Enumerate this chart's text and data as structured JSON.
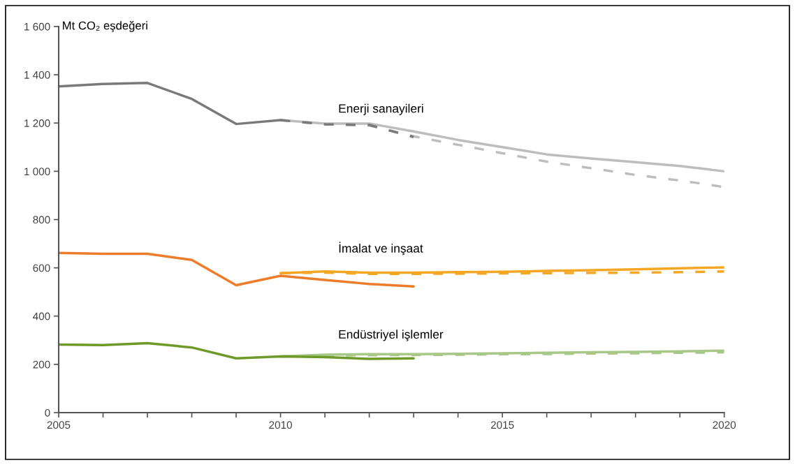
{
  "chart_data": {
    "type": "line",
    "ylabel": "Mt CO₂ eşdeğeri",
    "xlim": [
      2005,
      2020
    ],
    "ylim": [
      0,
      1600
    ],
    "xticks": [
      2005,
      {
        "value": 2006,
        "label": null
      },
      {
        "value": 2007,
        "label": null
      },
      {
        "value": 2008,
        "label": null
      },
      {
        "value": 2009,
        "label": null
      },
      2010,
      {
        "value": 2011,
        "label": null
      },
      {
        "value": 2012,
        "label": null
      },
      {
        "value": 2013,
        "label": null
      },
      {
        "value": 2014,
        "label": null
      },
      2015,
      {
        "value": 2016,
        "label": null
      },
      {
        "value": 2017,
        "label": null
      },
      {
        "value": 2018,
        "label": null
      },
      {
        "value": 2019,
        "label": null
      },
      2020
    ],
    "yticks": [
      0,
      200,
      400,
      600,
      800,
      {
        "value": 1000,
        "label": "1 000"
      },
      {
        "value": 1200,
        "label": "1 200"
      },
      {
        "value": 1400,
        "label": "1 400"
      },
      {
        "value": 1600,
        "label": "1 600"
      }
    ],
    "grid": false,
    "legend": false,
    "series": [
      {
        "color": "#bdbdbd",
        "line_style": "solid",
        "x": [
          2010,
          2011,
          2012,
          2013,
          2014,
          2015,
          2016,
          2017,
          2018,
          2019,
          2020
        ],
        "values": [
          1212,
          1198,
          1198,
          1165,
          1130,
          1100,
          1070,
          1053,
          1038,
          1022,
          1000
        ]
      },
      {
        "color": "#bdbdbd",
        "line_style": "dashed",
        "x": [
          2010,
          2011,
          2012,
          2013,
          2014,
          2015,
          2016,
          2017,
          2018,
          2019,
          2020
        ],
        "values": [
          1212,
          1195,
          1190,
          1145,
          1110,
          1075,
          1040,
          1013,
          985,
          962,
          935
        ]
      },
      {
        "color": "#7a7a7a",
        "line_style": "solid",
        "x": [
          2005,
          2006,
          2007,
          2008,
          2009,
          2010
        ],
        "values": [
          1352,
          1362,
          1366,
          1300,
          1196,
          1212
        ]
      },
      {
        "color": "#7a7a7a",
        "line_style": "dashed",
        "x": [
          2010,
          2011,
          2012,
          2013
        ],
        "values": [
          1212,
          1195,
          1192,
          1142
        ]
      },
      {
        "color": "#f5a623",
        "line_style": "solid",
        "x": [
          2010,
          2011,
          2012,
          2013,
          2014,
          2015,
          2016,
          2017,
          2018,
          2019,
          2020
        ],
        "values": [
          578,
          585,
          580,
          580,
          582,
          584,
          587,
          590,
          594,
          598,
          602
        ]
      },
      {
        "color": "#f5a623",
        "line_style": "dashed",
        "x": [
          2010,
          2011,
          2012,
          2013,
          2014,
          2015,
          2016,
          2017,
          2018,
          2019,
          2020
        ],
        "values": [
          578,
          580,
          575,
          575,
          576,
          577,
          578,
          579,
          580,
          582,
          585
        ]
      },
      {
        "color": "#ee7d2b",
        "line_style": "solid",
        "x": [
          2005,
          2006,
          2007,
          2008,
          2009,
          2010,
          2011,
          2012,
          2013
        ],
        "values": [
          662,
          658,
          658,
          633,
          528,
          567,
          550,
          533,
          523
        ]
      },
      {
        "color": "#a8c888",
        "line_style": "solid",
        "x": [
          2010,
          2011,
          2012,
          2013,
          2014,
          2015,
          2016,
          2017,
          2018,
          2019,
          2020
        ],
        "values": [
          233,
          240,
          242,
          242,
          244,
          246,
          248,
          250,
          252,
          254,
          257
        ]
      },
      {
        "color": "#a8c888",
        "line_style": "dashed",
        "x": [
          2010,
          2011,
          2012,
          2013,
          2014,
          2015,
          2016,
          2017,
          2018,
          2019,
          2020
        ],
        "values": [
          233,
          237,
          238,
          239,
          240,
          242,
          243,
          245,
          246,
          248,
          250
        ]
      },
      {
        "color": "#6f9a2a",
        "line_style": "solid",
        "x": [
          2005,
          2006,
          2007,
          2008,
          2009,
          2010,
          2011,
          2012,
          2013
        ],
        "values": [
          282,
          280,
          288,
          270,
          225,
          233,
          230,
          223,
          225
        ]
      }
    ],
    "annotations": [
      "Enerji sanayileri",
      "İmalat ve inşaat",
      "Endüstriyel işlemler"
    ]
  }
}
